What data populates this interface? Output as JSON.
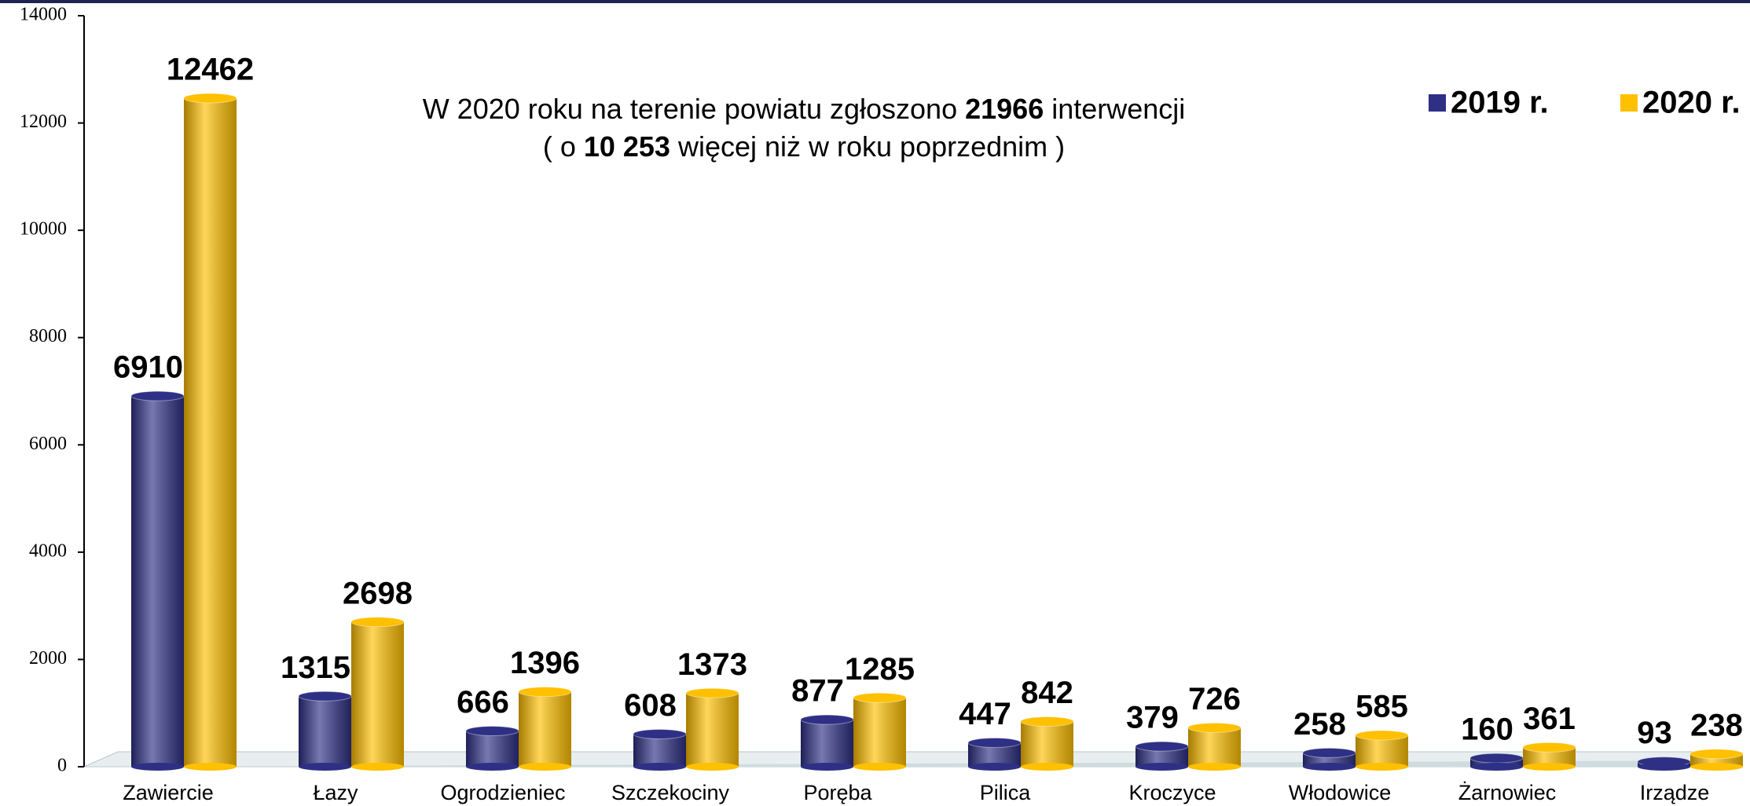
{
  "chart_data": {
    "type": "bar",
    "annotation": [
      [
        "W 2020 roku na terenie powiatu zgłoszono ",
        "21966",
        " interwencji"
      ],
      [
        "( o ",
        "10 253",
        " więcej niż w roku poprzednim )"
      ]
    ],
    "categories": [
      "Zawiercie",
      "Łazy",
      "Ogrodzieniec",
      "Szczekociny",
      "Poręba",
      "Pilica",
      "Kroczyce",
      "Włodowice",
      "Żarnowiec",
      "Irządze"
    ],
    "series": [
      {
        "name": "2019 r.",
        "color": "#2e3085",
        "values": [
          6910,
          1315,
          666,
          608,
          877,
          447,
          379,
          258,
          160,
          93
        ]
      },
      {
        "name": "2020 r.",
        "color": "#ffc000",
        "values": [
          12462,
          2698,
          1396,
          1373,
          1285,
          842,
          726,
          585,
          361,
          238
        ]
      }
    ],
    "ylim": [
      0,
      14000
    ],
    "yticks": [
      0,
      2000,
      4000,
      6000,
      8000,
      10000,
      12000,
      14000
    ],
    "legend": "top-right"
  }
}
